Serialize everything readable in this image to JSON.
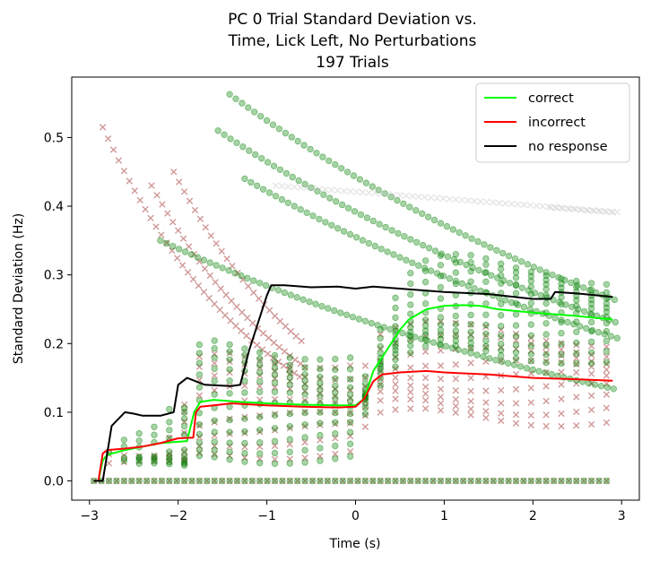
{
  "chart_data": {
    "type": "scatter",
    "title": [
      "PC 0 Trial Standard Deviation vs.",
      "Time, Lick Left, No Perturbations",
      "197 Trials"
    ],
    "xlabel": "Time (s)",
    "ylabel": "Standard Deviation (Hz)",
    "xlim": [
      -3.2,
      3.2
    ],
    "ylim": [
      -0.028,
      0.588
    ],
    "xticks": [
      -3,
      -2,
      -1,
      0,
      1,
      2,
      3
    ],
    "xtick_labels": [
      "−3",
      "−2",
      "−1",
      "0",
      "1",
      "2",
      "3"
    ],
    "yticks": [
      0.0,
      0.1,
      0.2,
      0.3,
      0.4,
      0.5
    ],
    "ytick_labels": [
      "0.0",
      "0.1",
      "0.2",
      "0.3",
      "0.4",
      "0.5"
    ],
    "grid": false,
    "legend_position": "top-right",
    "colors": {
      "correct": "#00ff00",
      "incorrect": "#ff0000",
      "no_response": "#000000",
      "correct_points": "#008000",
      "incorrect_points": "#8b0000",
      "no_response_points": "#c0c0c0"
    },
    "series": [
      {
        "name": "correct",
        "marker": "circle",
        "mean_x": [
          -2.95,
          -2.9,
          -2.85,
          -2.8,
          -2.6,
          -2.4,
          -2.2,
          -1.9,
          -1.82,
          -1.75,
          -1.6,
          -1.3,
          -1.0,
          -0.6,
          -0.2,
          0.0,
          0.1,
          0.2,
          0.3,
          0.4,
          0.5,
          0.6,
          0.8,
          1.0,
          1.2,
          1.4,
          1.6,
          2.0,
          2.5,
          2.9
        ],
        "mean_y": [
          0.0,
          0.0,
          0.03,
          0.038,
          0.045,
          0.05,
          0.055,
          0.058,
          0.1,
          0.115,
          0.118,
          0.115,
          0.113,
          0.111,
          0.11,
          0.11,
          0.12,
          0.16,
          0.18,
          0.2,
          0.22,
          0.235,
          0.25,
          0.255,
          0.256,
          0.255,
          0.25,
          0.245,
          0.24,
          0.235
        ]
      },
      {
        "name": "incorrect",
        "marker": "x",
        "mean_x": [
          -2.95,
          -2.9,
          -2.85,
          -2.8,
          -2.6,
          -2.4,
          -2.2,
          -2.0,
          -1.83,
          -1.8,
          -1.75,
          -1.6,
          -1.4,
          -1.0,
          -0.6,
          -0.2,
          0.0,
          0.1,
          0.2,
          0.3,
          0.5,
          0.8,
          1.0,
          1.5,
          2.0,
          2.5,
          2.9
        ],
        "mean_y": [
          0.0,
          0.0,
          0.04,
          0.045,
          0.047,
          0.05,
          0.055,
          0.062,
          0.063,
          0.1,
          0.108,
          0.11,
          0.113,
          0.11,
          0.108,
          0.107,
          0.108,
          0.12,
          0.145,
          0.155,
          0.158,
          0.16,
          0.158,
          0.155,
          0.15,
          0.148,
          0.146
        ]
      },
      {
        "name": "no response",
        "marker": "x",
        "mean_x": [
          -2.95,
          -2.85,
          -2.8,
          -2.75,
          -2.6,
          -2.5,
          -2.4,
          -2.2,
          -2.05,
          -2.0,
          -1.9,
          -1.7,
          -1.4,
          -1.3,
          -1.2,
          -1.1,
          -1.0,
          -0.95,
          -0.8,
          -0.5,
          -0.2,
          0.0,
          0.2,
          0.5,
          0.8,
          1.0,
          1.5,
          2.0,
          2.2,
          2.25,
          2.5,
          2.9
        ],
        "mean_y": [
          0.0,
          0.0,
          0.04,
          0.08,
          0.1,
          0.098,
          0.095,
          0.095,
          0.1,
          0.14,
          0.15,
          0.14,
          0.138,
          0.14,
          0.19,
          0.23,
          0.27,
          0.285,
          0.285,
          0.282,
          0.283,
          0.28,
          0.283,
          0.28,
          0.277,
          0.275,
          0.272,
          0.265,
          0.265,
          0.275,
          0.273,
          0.268
        ]
      }
    ]
  }
}
